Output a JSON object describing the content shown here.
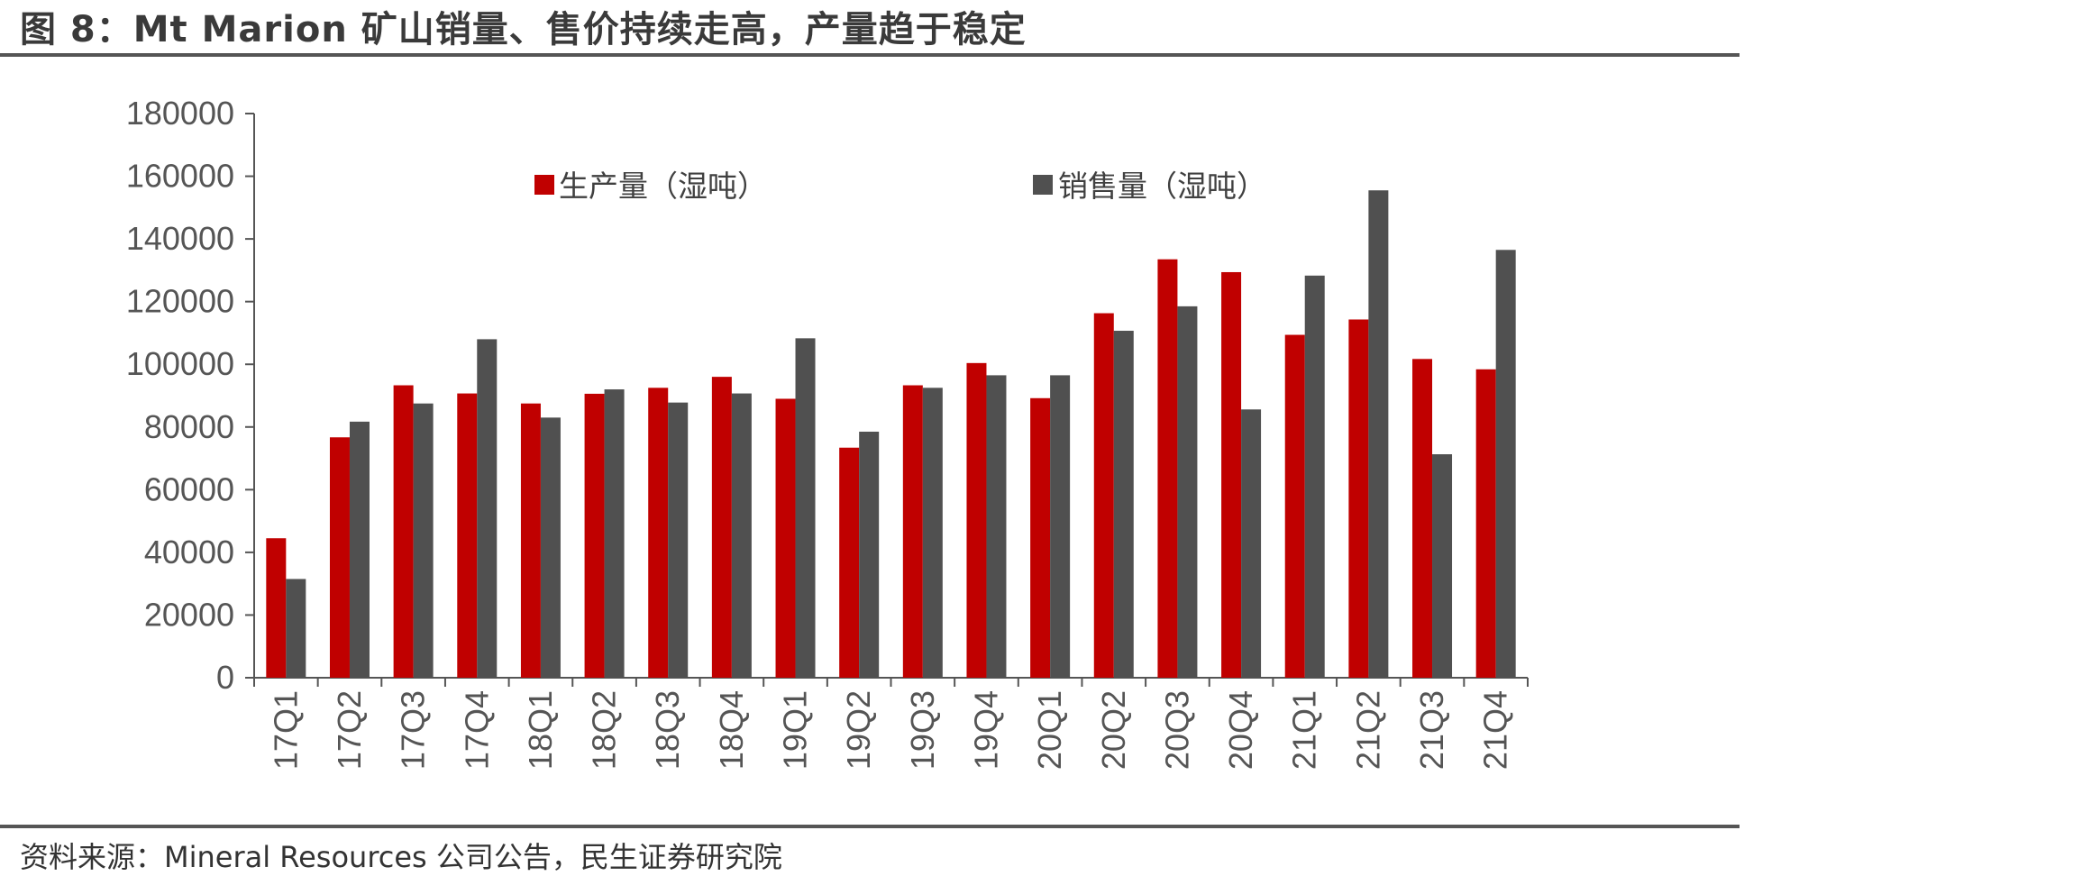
{
  "figure": {
    "title": "图 8：Mt Marion 矿山销量、售价持续走高，产量趋于稳定",
    "source": "资料来源：Mineral Resources 公司公告，民生证券研究院"
  },
  "colors": {
    "production": "#C00000",
    "sales": "#505050",
    "axis": "#555555"
  },
  "chart_data": {
    "type": "bar",
    "title": "",
    "xlabel": "",
    "ylabel": "",
    "ylim": [
      0,
      180000
    ],
    "yticks": [
      "0",
      "20000",
      "40000",
      "60000",
      "80000",
      "100000",
      "120000",
      "140000",
      "160000",
      "180000"
    ],
    "grid": false,
    "legend_position": "top",
    "categories": [
      "17Q1",
      "17Q2",
      "17Q3",
      "17Q4",
      "18Q1",
      "18Q2",
      "18Q3",
      "18Q4",
      "19Q1",
      "19Q2",
      "19Q3",
      "19Q4",
      "20Q1",
      "20Q2",
      "20Q3",
      "20Q4",
      "21Q1",
      "21Q2",
      "21Q3",
      "21Q4"
    ],
    "series": [
      {
        "name": "生产量（湿吨）",
        "values": [
          44500,
          76700,
          93300,
          90700,
          87500,
          90600,
          92500,
          96000,
          89000,
          73400,
          93300,
          100400,
          89200,
          116300,
          133500,
          129400,
          109400,
          114300,
          101700,
          98400
        ]
      },
      {
        "name": "销售量（湿吨）",
        "values": [
          31500,
          81700,
          87500,
          108000,
          83000,
          92000,
          87800,
          90700,
          108300,
          78500,
          92500,
          96500,
          96500,
          110700,
          118500,
          85600,
          128300,
          155500,
          71300,
          136500
        ]
      }
    ]
  }
}
